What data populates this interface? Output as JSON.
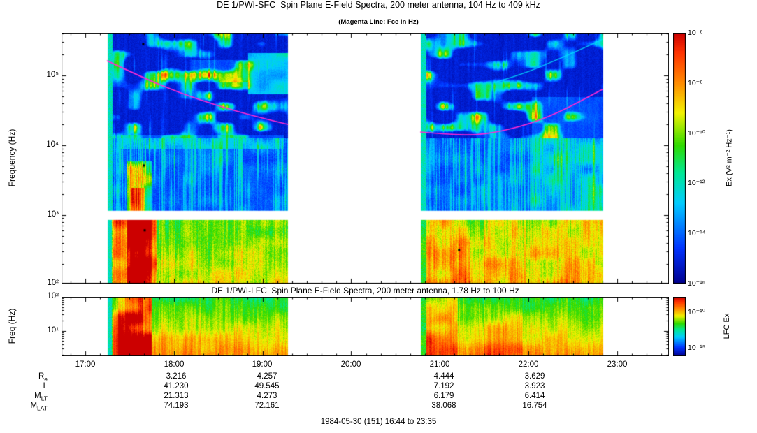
{
  "figure": {
    "caption": "1984-05-30 (151) 16:44 to 23:35"
  },
  "sfc_panel": {
    "title": "DE 1/PWI-SFC  Spin Plane E-Field Spectra, 200 meter antenna, 104 Hz to 409 kHz",
    "subtitle": "(Magenta Line: Fce in Hz)",
    "ylabel": "Frequency (Hz)",
    "yticks": [
      "10⁵",
      "10⁴",
      "10³",
      "10²"
    ],
    "colorbar": {
      "label": "Ex (V² m⁻² Hz⁻¹)",
      "ticks": [
        "10⁻⁶",
        "10⁻⁸",
        "10⁻¹⁰",
        "10⁻¹²",
        "10⁻¹⁴",
        "10⁻¹⁶"
      ]
    }
  },
  "lfc_panel": {
    "title": "DE 1/PWI-LFC  Spin Plane E-Field Spectra, 200 meter antenna, 1.78 Hz to 100 Hz",
    "ylabel": "Freq (Hz)",
    "yticks": [
      "10²",
      "10¹"
    ],
    "colorbar": {
      "label": "LFC Ex",
      "ticks": [
        "10⁻¹⁰",
        "10⁻¹⁵"
      ]
    }
  },
  "time_axis": {
    "ticks": [
      "17:00",
      "18:00",
      "19:00",
      "20:00",
      "21:00",
      "22:00",
      "23:00"
    ]
  },
  "ephemeris": {
    "rows": [
      {
        "label": "R",
        "sub": "e",
        "values": [
          "3.216",
          "4.257",
          "4.444",
          "3.629"
        ]
      },
      {
        "label": "L",
        "sub": "",
        "values": [
          "41.230",
          "49.545",
          "7.192",
          "3.923"
        ]
      },
      {
        "label": "M",
        "sub": "LT",
        "values": [
          "21.313",
          "4.273",
          "6.179",
          "6.414"
        ]
      },
      {
        "label": "M",
        "sub": "LAT",
        "values": [
          "74.193",
          "72.161",
          "38.068",
          "16.754"
        ]
      }
    ]
  },
  "colors": {
    "fce_line": "#ff2ad4",
    "frame": "#000000",
    "background": "#ffffff",
    "rainbow_stops": [
      {
        "v": 0.0,
        "c": "#00008f"
      },
      {
        "v": 0.14,
        "c": "#0033ff"
      },
      {
        "v": 0.32,
        "c": "#00ccff"
      },
      {
        "v": 0.44,
        "c": "#00e896"
      },
      {
        "v": 0.55,
        "c": "#2edb00"
      },
      {
        "v": 0.68,
        "c": "#f2f200"
      },
      {
        "v": 0.8,
        "c": "#ff8c00"
      },
      {
        "v": 0.92,
        "c": "#ff3300"
      },
      {
        "v": 1.0,
        "c": "#cc0000"
      }
    ]
  },
  "chart_data": [
    {
      "type": "heatmap",
      "name": "sfc_spectrogram",
      "title": "DE 1/PWI-SFC Spin Plane E-Field Spectra, 200 meter antenna, 104 Hz to 409 kHz",
      "overlay_note": "Magenta Line: Fce in Hz",
      "x_axis": "UT",
      "x_start": "16:44",
      "x_end": "23:35",
      "x_total_minutes": 411,
      "xticks": [
        "17:00",
        "18:00",
        "19:00",
        "20:00",
        "21:00",
        "22:00",
        "23:00"
      ],
      "xtick_minutes": [
        16,
        76,
        136,
        196,
        256,
        316,
        376
      ],
      "y_scale": "log",
      "ylabel": "Frequency (Hz)",
      "y_range_hz": [
        104,
        409000
      ],
      "ytick_hz": [
        100,
        1000,
        10000,
        100000
      ],
      "z_label": "Ex (V² m⁻² Hz⁻¹)",
      "z_range_log10": [
        -16,
        -6
      ],
      "segments_minutes": [
        [
          31,
          153
        ],
        [
          243,
          366
        ]
      ],
      "data_gaps_minutes": [
        [
          0,
          31
        ],
        [
          153,
          243
        ],
        [
          366,
          411
        ]
      ],
      "white_band_hz": [
        850,
        1150
      ],
      "fce_line_hz": {
        "color": "#ff2ad4",
        "series": [
          {
            "minutes": [
              31,
              55,
              80,
              105,
              130,
              153
            ],
            "log10_hz": [
              5.21,
              4.97,
              4.75,
              4.57,
              4.42,
              4.3
            ]
          },
          {
            "minutes": [
              243,
              265,
              285,
              310,
              335,
              366
            ],
            "log10_hz": [
              4.19,
              4.15,
              4.15,
              4.26,
              4.45,
              4.8
            ]
          }
        ]
      },
      "traces": [
        {
          "minutes": [
            293,
            312,
            330,
            348,
            366
          ],
          "log10_hz": [
            4.9,
            5.02,
            5.18,
            5.34,
            5.52
          ],
          "color": "rgba(0,225,255,0.85)",
          "width": 1.5
        }
      ],
      "markers_black": [
        [
          55.3,
          5.45
        ],
        [
          55.7,
          3.71
        ],
        [
          56.3,
          2.78
        ],
        [
          269,
          2.5
        ]
      ],
      "features": [
        {
          "t": [
            31,
            34.5
          ],
          "f": [
            104,
            409000
          ],
          "set": 0.4
        },
        {
          "t": [
            243,
            246.5
          ],
          "f": [
            104,
            409000
          ],
          "set": 0.4
        },
        {
          "t": [
            34,
            64
          ],
          "f": [
            104,
            950
          ],
          "add": 0.22
        },
        {
          "t": [
            44,
            61
          ],
          "f": [
            104,
            6000
          ],
          "add": 0.3
        },
        {
          "t": [
            47,
            56
          ],
          "f": [
            104,
            2500
          ],
          "add": 0.18
        },
        {
          "t": [
            126,
            153
          ],
          "f": [
            55000,
            210000
          ],
          "add": 0.26
        },
        {
          "t": [
            88,
            126
          ],
          "f": [
            80000,
            170000
          ],
          "add": 0.1
        },
        {
          "t": [
            40,
            150
          ],
          "f": [
            9000,
            14000
          ],
          "add": 0.1
        },
        {
          "t": [
            243,
            276
          ],
          "f": [
            104,
            950
          ],
          "add": 0.12
        },
        {
          "t": [
            318,
            366
          ],
          "f": [
            1000,
            50000
          ],
          "add": 0.1
        },
        {
          "t": [
            286,
            366
          ],
          "f": [
            104,
            950
          ],
          "add": 0.08
        }
      ]
    },
    {
      "type": "heatmap",
      "name": "lfc_spectrogram",
      "title": "DE 1/PWI-LFC Spin Plane E-Field Spectra, 200 meter antenna, 1.78 Hz to 100 Hz",
      "x_axis": "UT",
      "x_start": "16:44",
      "x_end": "23:35",
      "x_total_minutes": 411,
      "xticks": [
        "17:00",
        "18:00",
        "19:00",
        "20:00",
        "21:00",
        "22:00",
        "23:00"
      ],
      "xtick_minutes": [
        16,
        76,
        136,
        196,
        256,
        316,
        376
      ],
      "y_scale": "log",
      "ylabel": "Freq (Hz)",
      "y_range_hz": [
        1.78,
        100
      ],
      "ytick_hz": [
        10,
        100
      ],
      "z_label": "LFC Ex",
      "z_ticks_log10": [
        -10,
        -15
      ],
      "segments_minutes": [
        [
          31,
          153
        ],
        [
          243,
          366
        ]
      ],
      "features": [
        {
          "t": [
            31,
            34.5
          ],
          "f": [
            1.78,
            100
          ],
          "set": 0.4
        },
        {
          "t": [
            243,
            246.5
          ],
          "f": [
            1.78,
            100
          ],
          "set": 0.4
        },
        {
          "t": [
            38,
            61
          ],
          "f": [
            1.78,
            100
          ],
          "add": 0.3
        },
        {
          "t": [
            34,
            38
          ],
          "f": [
            1.78,
            100
          ],
          "add": 0.14
        },
        {
          "t": [
            43,
            55
          ],
          "f": [
            1.78,
            100
          ],
          "add": 0.14
        },
        {
          "t": [
            243,
            268
          ],
          "f": [
            1.78,
            100
          ],
          "add": 0.12
        },
        {
          "t": [
            286,
            312
          ],
          "f": [
            1.78,
            100
          ],
          "add": 0.07
        }
      ]
    }
  ]
}
